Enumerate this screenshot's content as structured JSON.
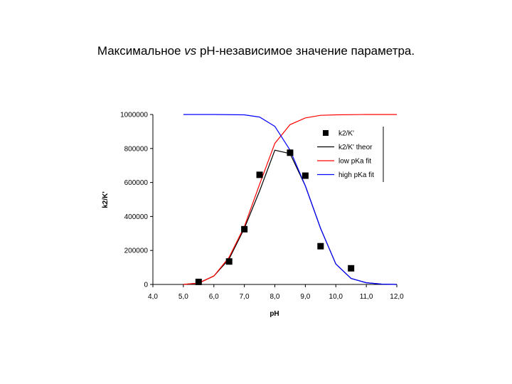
{
  "title": {
    "part1": "Максимальное ",
    "part2": "vs",
    "part3": " pH-независимое значение параметра."
  },
  "chart_data": {
    "type": "scatter",
    "xlabel": "pH",
    "ylabel": "k2/K'",
    "xlim": [
      4,
      12
    ],
    "ylim": [
      0,
      1000000
    ],
    "x_ticks": [
      "4,0",
      "5,0",
      "6,0",
      "7,0",
      "8,0",
      "9,0",
      "10,0",
      "11,0",
      "12,0"
    ],
    "y_ticks": [
      "0",
      "200000",
      "400000",
      "600000",
      "800000",
      "1000000"
    ],
    "grid": false,
    "legend_position": "top-right",
    "series": [
      {
        "name": "k2/K'",
        "kind": "markers",
        "color": "#000000",
        "points": [
          [
            5.5,
            15000
          ],
          [
            6.5,
            135000
          ],
          [
            7.0,
            325000
          ],
          [
            7.5,
            645000
          ],
          [
            8.5,
            775000
          ],
          [
            9.0,
            640000
          ],
          [
            9.5,
            225000
          ],
          [
            10.5,
            95000
          ]
        ]
      },
      {
        "name": "k2/K' theor",
        "kind": "line",
        "color": "#000000",
        "points": [
          [
            5.0,
            0
          ],
          [
            5.5,
            8000
          ],
          [
            6.0,
            50000
          ],
          [
            6.5,
            150000
          ],
          [
            7.0,
            330000
          ],
          [
            7.5,
            550000
          ],
          [
            8.0,
            790000
          ],
          [
            8.5,
            770000
          ],
          [
            9.0,
            580000
          ],
          [
            9.5,
            330000
          ],
          [
            10.0,
            120000
          ],
          [
            10.5,
            35000
          ],
          [
            11.0,
            10000
          ],
          [
            11.5,
            2000
          ],
          [
            12.0,
            0
          ]
        ]
      },
      {
        "name": "low pKa fit",
        "kind": "line",
        "color": "#ff0000",
        "points": [
          [
            5.0,
            0
          ],
          [
            5.5,
            8000
          ],
          [
            6.0,
            50000
          ],
          [
            6.5,
            160000
          ],
          [
            7.0,
            340000
          ],
          [
            7.5,
            590000
          ],
          [
            8.0,
            830000
          ],
          [
            8.5,
            940000
          ],
          [
            9.0,
            980000
          ],
          [
            9.5,
            995000
          ],
          [
            10.0,
            998000
          ],
          [
            11.0,
            1000000
          ],
          [
            12.0,
            1000000
          ]
        ]
      },
      {
        "name": "high pKa fit",
        "kind": "line",
        "color": "#0000ff",
        "points": [
          [
            5.0,
            1000000
          ],
          [
            6.0,
            1000000
          ],
          [
            7.0,
            998000
          ],
          [
            7.5,
            985000
          ],
          [
            8.0,
            930000
          ],
          [
            8.5,
            790000
          ],
          [
            9.0,
            580000
          ],
          [
            9.5,
            330000
          ],
          [
            10.0,
            120000
          ],
          [
            10.5,
            35000
          ],
          [
            11.0,
            10000
          ],
          [
            11.5,
            2000
          ],
          [
            12.0,
            0
          ]
        ]
      }
    ]
  }
}
